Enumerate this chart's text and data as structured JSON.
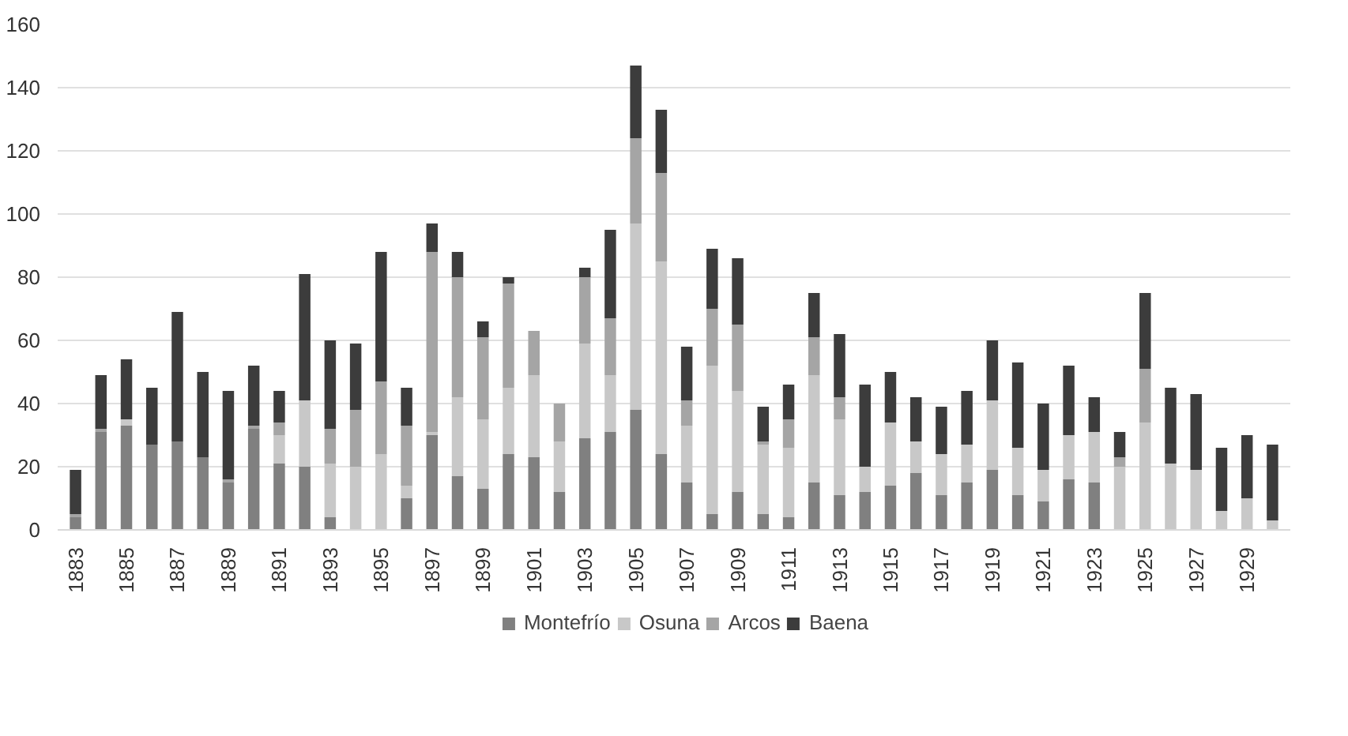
{
  "chart_data": {
    "type": "bar",
    "stacked": true,
    "categories": [
      "1883",
      null,
      "1885",
      null,
      "1887",
      null,
      "1889",
      null,
      "1891",
      null,
      "1893",
      null,
      "1895",
      null,
      "1897",
      null,
      "1899",
      null,
      "1901",
      null,
      "1903",
      null,
      "1905",
      null,
      "1907",
      null,
      "1909",
      null,
      "1911",
      null,
      "1913",
      null,
      "1915",
      null,
      "1917",
      null,
      "1919",
      null,
      "1921",
      null,
      "1923",
      null,
      "1925",
      null,
      "1927",
      null,
      "1929",
      null
    ],
    "series": [
      {
        "name": "Montefrío",
        "color": "#808080",
        "values": [
          4,
          31,
          33,
          27,
          28,
          23,
          15,
          32,
          21,
          20,
          4,
          0,
          0,
          10,
          30,
          17,
          13,
          24,
          23,
          12,
          29,
          31,
          38,
          24,
          15,
          5,
          12,
          5,
          4,
          15,
          11,
          12,
          14,
          18,
          11,
          15,
          19,
          11,
          9,
          16,
          15,
          0,
          0,
          0,
          0,
          0,
          0,
          0
        ]
      },
      {
        "name": "Osuna",
        "color": "#c8c8c8",
        "values": [
          0,
          0,
          2,
          0,
          0,
          0,
          0,
          0,
          9,
          21,
          17,
          20,
          24,
          4,
          1,
          25,
          22,
          21,
          26,
          16,
          30,
          18,
          59,
          61,
          18,
          47,
          32,
          22,
          22,
          34,
          24,
          8,
          20,
          10,
          13,
          12,
          22,
          15,
          10,
          14,
          16,
          20,
          34,
          21,
          19,
          6,
          10,
          3
        ]
      },
      {
        "name": "Arcos",
        "color": "#a5a5a5",
        "values": [
          1,
          1,
          0,
          0,
          0,
          0,
          1,
          1,
          4,
          0,
          11,
          18,
          23,
          19,
          57,
          38,
          26,
          33,
          14,
          12,
          21,
          18,
          27,
          28,
          8,
          18,
          21,
          1,
          9,
          12,
          7,
          0,
          0,
          0,
          0,
          0,
          0,
          0,
          0,
          0,
          0,
          3,
          17,
          0,
          0,
          0,
          0,
          0
        ]
      },
      {
        "name": "Baena",
        "color": "#3c3c3c",
        "values": [
          14,
          17,
          19,
          18,
          41,
          27,
          28,
          19,
          10,
          40,
          28,
          21,
          41,
          12,
          9,
          8,
          5,
          2,
          0,
          0,
          3,
          28,
          23,
          20,
          17,
          19,
          21,
          11,
          11,
          14,
          20,
          26,
          16,
          14,
          15,
          17,
          19,
          27,
          21,
          22,
          11,
          8,
          24,
          24,
          24,
          20,
          20,
          24
        ]
      }
    ],
    "ylim": [
      0,
      160
    ],
    "yticks": [
      0,
      20,
      40,
      60,
      80,
      100,
      120,
      140,
      160
    ],
    "grid": "y",
    "legend": "bottom"
  }
}
